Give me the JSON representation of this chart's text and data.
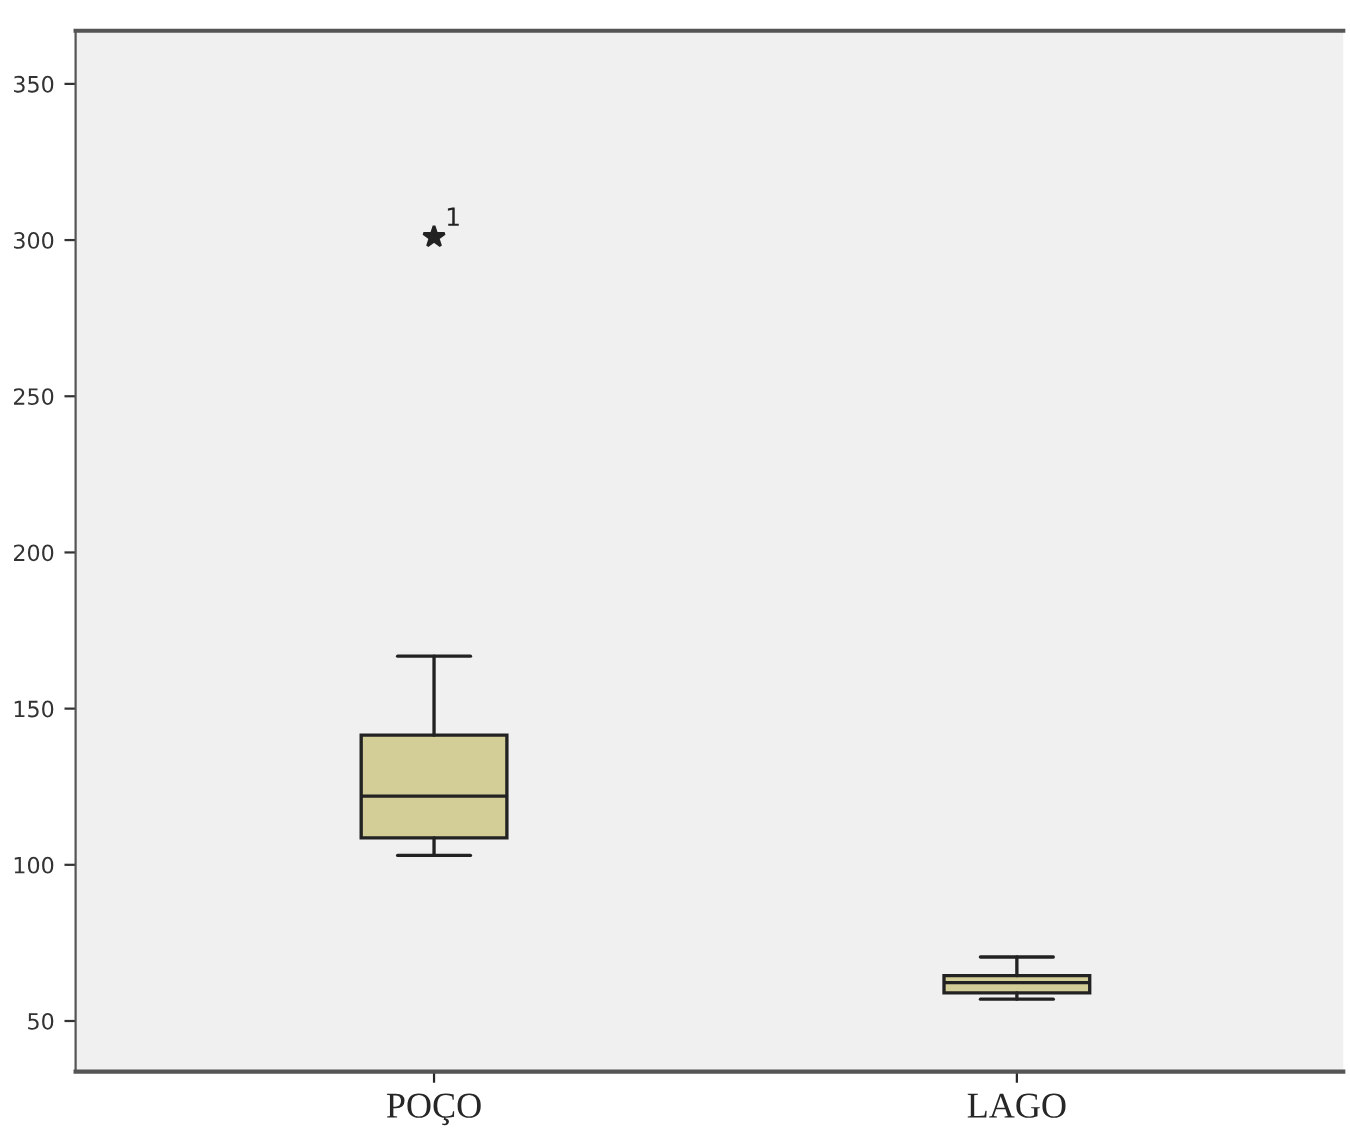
{
  "chart_data": {
    "type": "box",
    "categories": [
      "POÇO",
      "LAGO"
    ],
    "boxes": [
      {
        "low": 103,
        "q1": 108.6,
        "median": 122,
        "q3": 141.5,
        "high": 166.8,
        "outliers": [
          301
        ]
      },
      {
        "low": 57,
        "q1": 59,
        "median": 62.3,
        "q3": 64.5,
        "high": 70.5
      }
    ],
    "color": "#d3cd98",
    "marker": "star",
    "annotations": [
      "1"
    ],
    "ylim": [
      33.8,
      367
    ],
    "yticks": [
      50,
      100,
      150,
      200,
      250,
      300,
      350
    ],
    "grid": false
  }
}
